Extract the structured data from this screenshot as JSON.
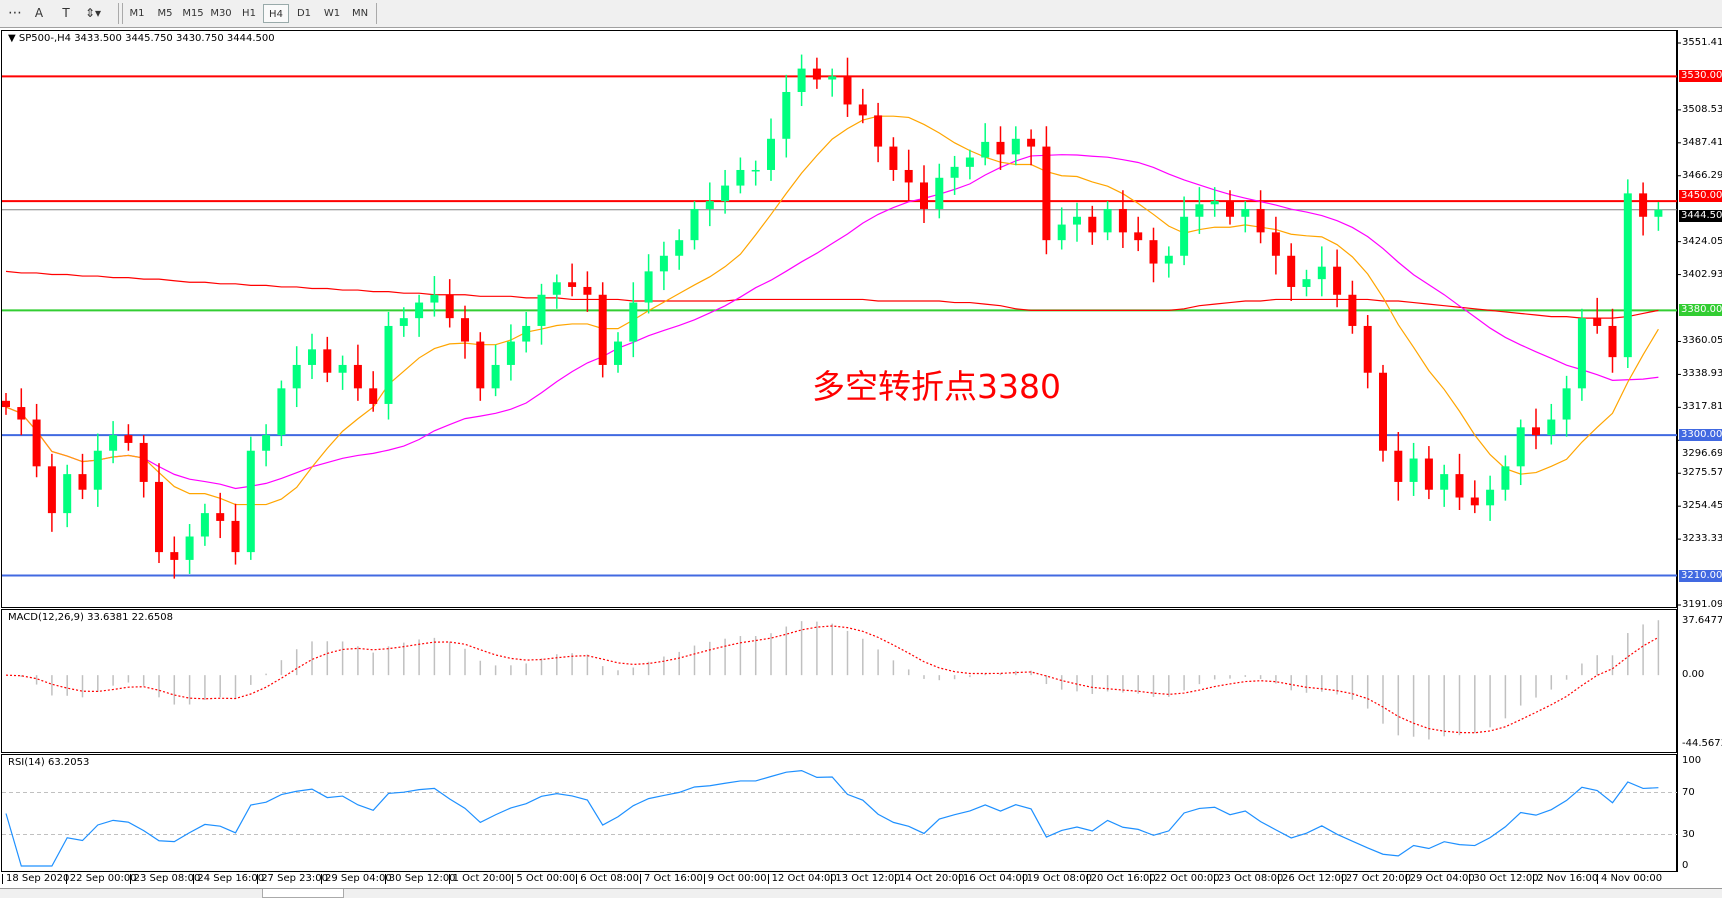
{
  "toolbar": {
    "tools": [
      {
        "name": "grid-tool",
        "glyph": "⋯"
      },
      {
        "name": "text-tool",
        "glyph": "A"
      },
      {
        "name": "text-label-tool",
        "glyph": "T"
      },
      {
        "name": "arrows-tool",
        "glyph": "⇕▾"
      }
    ],
    "timeframes": [
      "M1",
      "M5",
      "M15",
      "M30",
      "H1",
      "H4",
      "D1",
      "W1",
      "MN"
    ],
    "active_timeframe": "H4"
  },
  "main": {
    "header": "SP500-,H4  3433.500 3445.750 3430.750 3444.500",
    "annotation": "多空转折点3380",
    "price_labels": [
      "3551.410",
      "3508.530",
      "3487.410",
      "3466.290",
      "3424.050",
      "3402.930",
      "3360.050",
      "3338.930",
      "3317.810",
      "3296.690",
      "3275.570",
      "3254.450",
      "3233.330",
      "3191.090"
    ],
    "levels": [
      {
        "label": "3530.000",
        "value": 3530,
        "color": "#ff0000"
      },
      {
        "label": "3450.000",
        "value": 3450,
        "color": "#ff0000"
      },
      {
        "label": "3380.000",
        "value": 3380,
        "color": "#32cd32"
      },
      {
        "label": "3300.000",
        "value": 3300,
        "color": "#4169e1"
      },
      {
        "label": "3210.000",
        "value": 3210,
        "color": "#4169e1"
      }
    ],
    "current_price": {
      "label": "3444.500",
      "value": 3444.5
    }
  },
  "macd": {
    "header": "MACD(12,26,9) 33.6381 22.6508",
    "labels": [
      "37.6477",
      "0.00",
      "-44.5673"
    ]
  },
  "rsi": {
    "header": "RSI(14) 63.2053",
    "labels": [
      "100",
      "70",
      "30",
      "0"
    ]
  },
  "xaxis": {
    "labels": [
      "18 Sep 2020",
      "22 Sep 00:00",
      "23 Sep 08:00",
      "24 Sep 16:00",
      "27 Sep 23:00",
      "29 Sep 04:00",
      "30 Sep 12:00",
      "1 Oct 20:00",
      "5 Oct 00:00",
      "6 Oct 08:00",
      "7 Oct 16:00",
      "9 Oct 00:00",
      "12 Oct 04:00",
      "13 Oct 12:00",
      "14 Oct 20:00",
      "16 Oct 04:00",
      "19 Oct 08:00",
      "20 Oct 16:00",
      "22 Oct 00:00",
      "23 Oct 08:00",
      "26 Oct 12:00",
      "27 Oct 20:00",
      "29 Oct 04:00",
      "30 Oct 12:00",
      "2 Nov 16:00",
      "4 Nov 00:00"
    ]
  },
  "chart_data": {
    "type": "candlestick",
    "symbol": "SP500-",
    "timeframe": "H4",
    "ylim": [
      3191.09,
      3551.41
    ],
    "colors": {
      "up": "#00ff7f",
      "down": "#ff0000",
      "ma_fast": "#ffa500",
      "ma_mid": "#ff00ff",
      "ma_slow": "#ff0000",
      "macd_hist": "#c0c0c0",
      "macd_signal": "#ff0000",
      "rsi": "#1e90ff"
    },
    "close": [
      3318,
      3310,
      3280,
      3250,
      3275,
      3265,
      3290,
      3300,
      3295,
      3270,
      3225,
      3220,
      3235,
      3250,
      3245,
      3225,
      3290,
      3300,
      3330,
      3345,
      3355,
      3340,
      3345,
      3330,
      3320,
      3370,
      3375,
      3385,
      3390,
      3375,
      3360,
      3330,
      3345,
      3360,
      3370,
      3390,
      3398,
      3395,
      3390,
      3345,
      3360,
      3385,
      3405,
      3415,
      3425,
      3445,
      3450,
      3460,
      3470,
      3470,
      3490,
      3520,
      3535,
      3528,
      3530,
      3512,
      3505,
      3485,
      3470,
      3462,
      3445,
      3465,
      3472,
      3478,
      3488,
      3480,
      3490,
      3485,
      3425,
      3435,
      3440,
      3430,
      3445,
      3430,
      3425,
      3410,
      3415,
      3440,
      3448,
      3450,
      3440,
      3445,
      3430,
      3415,
      3395,
      3400,
      3408,
      3390,
      3370,
      3340,
      3290,
      3270,
      3285,
      3265,
      3275,
      3260,
      3255,
      3265,
      3280,
      3305,
      3300,
      3310,
      3330,
      3375,
      3370,
      3350,
      3455,
      3440,
      3444.5
    ],
    "ma_slow": [
      3405,
      3404,
      3404,
      3403,
      3403,
      3402,
      3402,
      3401,
      3401,
      3400,
      3400,
      3399,
      3398,
      3398,
      3397,
      3397,
      3396,
      3396,
      3395,
      3395,
      3394,
      3394,
      3393,
      3393,
      3392,
      3392,
      3391,
      3391,
      3390,
      3390,
      3390,
      3389,
      3389,
      3389,
      3388,
      3388,
      3388,
      3387,
      3387,
      3387,
      3387,
      3386,
      3386,
      3386,
      3386,
      3386,
      3386,
      3386,
      3387,
      3387,
      3387,
      3387,
      3387,
      3387,
      3387,
      3387,
      3387,
      3386,
      3386,
      3386,
      3386,
      3386,
      3385,
      3385,
      3384,
      3383,
      3381,
      3380,
      3380,
      3380,
      3380,
      3380,
      3380,
      3380,
      3380,
      3380,
      3380,
      3381,
      3383,
      3384,
      3385,
      3386,
      3386,
      3387,
      3387,
      3387,
      3387,
      3387,
      3387,
      3387,
      3386,
      3386,
      3385,
      3384,
      3383,
      3382,
      3381,
      3380,
      3379,
      3378,
      3377,
      3376,
      3376,
      3375,
      3375,
      3375,
      3376,
      3378,
      3380
    ]
  }
}
